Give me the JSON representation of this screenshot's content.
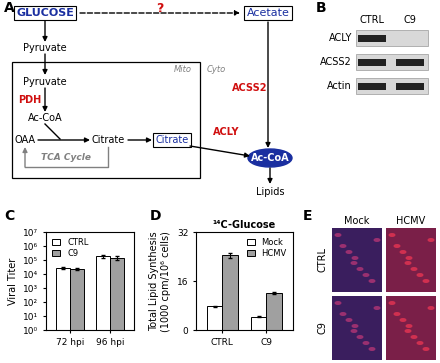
{
  "chart_data": [
    {
      "panel": "C",
      "type": "bar",
      "ylabel": "Viral Titer",
      "categories": [
        "72 hpi",
        "96 hpi"
      ],
      "series": [
        {
          "name": "CTRL",
          "color": "#ffffff",
          "values": [
            30000,
            200000
          ],
          "errors": [
            5000,
            50000
          ]
        },
        {
          "name": "C9",
          "color": "#a0a0a0",
          "values": [
            25000,
            150000
          ],
          "errors": [
            4000,
            40000
          ]
        }
      ],
      "log": "y",
      "ylim": [
        1,
        10000000
      ],
      "yticks": [
        {
          "value": 1,
          "label": "10⁰"
        },
        {
          "value": 10,
          "label": "10¹"
        },
        {
          "value": 100,
          "label": "10²"
        },
        {
          "value": 1000,
          "label": "10³"
        },
        {
          "value": 10000,
          "label": "10⁴"
        },
        {
          "value": 100000,
          "label": "10⁵"
        },
        {
          "value": 1000000,
          "label": "10⁶"
        },
        {
          "value": 10000000,
          "label": "10⁷"
        }
      ],
      "legend": "upper left"
    },
    {
      "panel": "D",
      "type": "bar",
      "title": "¹⁴C-Glucose",
      "ylabel": "Total Lipid Synthesis\n(1000 cpm/10⁶ cells)",
      "categories": [
        "CTRL",
        "C9"
      ],
      "series": [
        {
          "name": "Mock",
          "color": "#ffffff",
          "values": [
            7.8,
            4.5
          ],
          "errors": [
            0.3,
            0.2
          ]
        },
        {
          "name": "HCMV",
          "color": "#a0a0a0",
          "values": [
            24.5,
            12.2
          ],
          "errors": [
            0.8,
            0.4
          ]
        }
      ],
      "ylim": [
        0,
        32
      ],
      "yticks": [
        0,
        16,
        32
      ],
      "legend": "upper right"
    }
  ],
  "diagram": {
    "panel": "A",
    "glucose": "GLUCOSE",
    "acetate": "Acetate",
    "unknown": "?",
    "pyruvate_cyto": "Pyruvate",
    "pyruvate_mito": "Pyruvate",
    "pdh": "PDH",
    "acetyl_coa_mito": "Ac-CoA",
    "oaa": "OAA",
    "citrate_mito": "Citrate",
    "tca": "TCA Cycle",
    "mito": "Mito",
    "cyto": "Cyto",
    "citrate_cyto": "Citrate",
    "acly": "ACLY",
    "acss2": "ACSS2",
    "acetyl_coa_cyto": "Ac-CoA",
    "lipids": "Lipids"
  },
  "blot": {
    "panel": "B",
    "columns": [
      "CTRL",
      "C9"
    ],
    "rows": [
      "ACLY",
      "ACSS2",
      "Actin"
    ],
    "bands": [
      [
        true,
        false
      ],
      [
        true,
        true
      ],
      [
        true,
        true
      ]
    ]
  },
  "images": {
    "panel": "E",
    "columns": [
      "Mock",
      "HCMV"
    ],
    "rows": [
      "CTRL",
      "C9"
    ]
  }
}
